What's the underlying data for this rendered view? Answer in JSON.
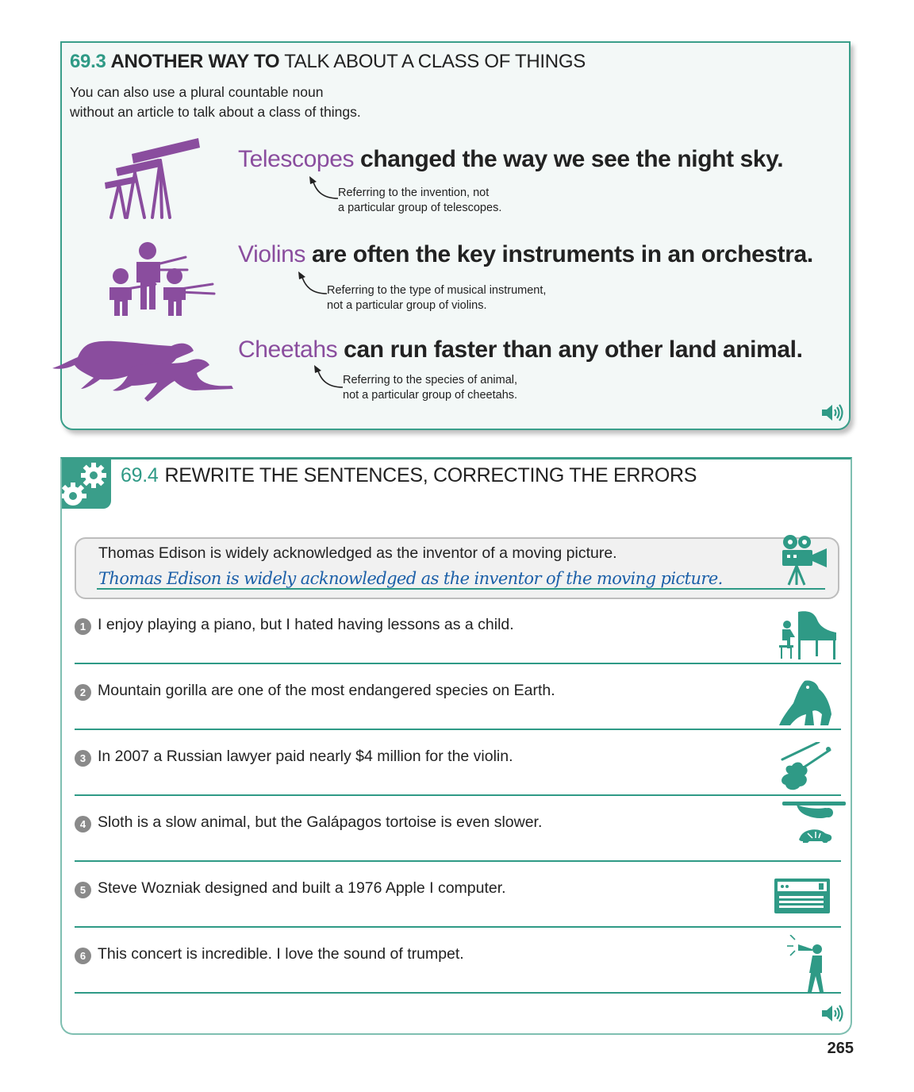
{
  "section_69_3": {
    "number": "69.3",
    "title_bold": "ANOTHER WAY TO",
    "title_rest": "TALK ABOUT A CLASS OF THINGS",
    "intro_line1": "You can also use a plural countable noun",
    "intro_line2": "without an article to talk about a class of things.",
    "examples": [
      {
        "subject": "Telescopes",
        "rest": "changed the way we see the night sky.",
        "note_line1": "Referring to the invention, not",
        "note_line2": "a particular group of telescopes.",
        "icon": "telescopes-icon"
      },
      {
        "subject": "Violins",
        "rest": "are often the key instruments in an orchestra.",
        "note_line1": "Referring to the type of musical instrument,",
        "note_line2": "not a particular group of violins.",
        "icon": "violinists-icon"
      },
      {
        "subject": "Cheetahs",
        "rest": "can run faster than any other land animal.",
        "note_line1": "Referring to the species of animal,",
        "note_line2": "not a particular group of cheetahs.",
        "icon": "cheetahs-icon"
      }
    ]
  },
  "section_69_4": {
    "number": "69.4",
    "title": "REWRITE THE SENTENCES, CORRECTING THE ERRORS",
    "example_question": "Thomas Edison is widely acknowledged as the inventor of a moving picture.",
    "example_answer": "Thomas Edison is widely acknowledged as the inventor of the moving picture.",
    "questions": [
      {
        "num": "1",
        "text": "I enjoy playing a piano, but I hated having lessons as a child.",
        "icon": "pianist-icon"
      },
      {
        "num": "2",
        "text": "Mountain gorilla are one of the most endangered species on Earth.",
        "icon": "gorilla-icon"
      },
      {
        "num": "3",
        "text": "In 2007 a Russian lawyer paid nearly $4 million for the violin.",
        "icon": "violin-icon"
      },
      {
        "num": "4",
        "text": "Sloth is a slow animal, but the Galápagos tortoise is even slower.",
        "icon": "sloth-tortoise-icon"
      },
      {
        "num": "5",
        "text": "Steve Wozniak designed and built a 1976 Apple I computer.",
        "icon": "computer-icon"
      },
      {
        "num": "6",
        "text": "This concert is incredible. I love the sound of trumpet.",
        "icon": "trumpeter-icon"
      }
    ]
  },
  "page_number": "265",
  "colors": {
    "teal": "#2f9a86",
    "purple": "#8a4d9e"
  }
}
